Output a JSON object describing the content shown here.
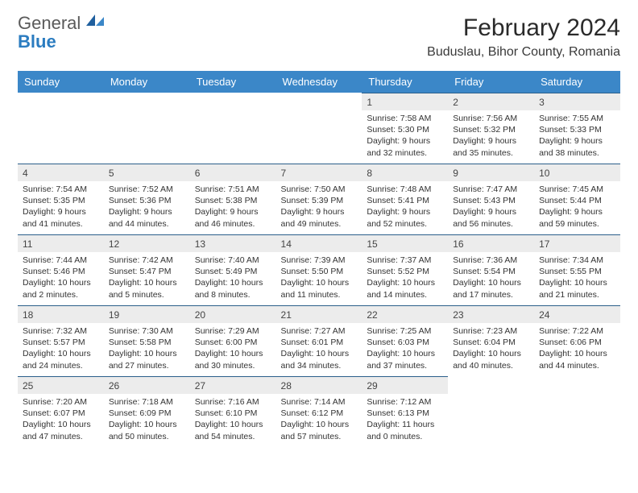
{
  "brand": {
    "name1": "General",
    "name2": "Blue"
  },
  "title": "February 2024",
  "location": "Buduslau, Bihor County, Romania",
  "colors": {
    "header_bg": "#3b87c8",
    "header_fg": "#ffffff",
    "daynum_bg": "#ececec",
    "rule": "#2b5f8a",
    "brand_gray": "#5a5a5a",
    "brand_blue": "#2b7cc0"
  },
  "weekdays": [
    "Sunday",
    "Monday",
    "Tuesday",
    "Wednesday",
    "Thursday",
    "Friday",
    "Saturday"
  ],
  "weeks": [
    [
      null,
      null,
      null,
      null,
      {
        "n": "1",
        "sr": "7:58 AM",
        "ss": "5:30 PM",
        "dl": "9 hours and 32 minutes."
      },
      {
        "n": "2",
        "sr": "7:56 AM",
        "ss": "5:32 PM",
        "dl": "9 hours and 35 minutes."
      },
      {
        "n": "3",
        "sr": "7:55 AM",
        "ss": "5:33 PM",
        "dl": "9 hours and 38 minutes."
      }
    ],
    [
      {
        "n": "4",
        "sr": "7:54 AM",
        "ss": "5:35 PM",
        "dl": "9 hours and 41 minutes."
      },
      {
        "n": "5",
        "sr": "7:52 AM",
        "ss": "5:36 PM",
        "dl": "9 hours and 44 minutes."
      },
      {
        "n": "6",
        "sr": "7:51 AM",
        "ss": "5:38 PM",
        "dl": "9 hours and 46 minutes."
      },
      {
        "n": "7",
        "sr": "7:50 AM",
        "ss": "5:39 PM",
        "dl": "9 hours and 49 minutes."
      },
      {
        "n": "8",
        "sr": "7:48 AM",
        "ss": "5:41 PM",
        "dl": "9 hours and 52 minutes."
      },
      {
        "n": "9",
        "sr": "7:47 AM",
        "ss": "5:43 PM",
        "dl": "9 hours and 56 minutes."
      },
      {
        "n": "10",
        "sr": "7:45 AM",
        "ss": "5:44 PM",
        "dl": "9 hours and 59 minutes."
      }
    ],
    [
      {
        "n": "11",
        "sr": "7:44 AM",
        "ss": "5:46 PM",
        "dl": "10 hours and 2 minutes."
      },
      {
        "n": "12",
        "sr": "7:42 AM",
        "ss": "5:47 PM",
        "dl": "10 hours and 5 minutes."
      },
      {
        "n": "13",
        "sr": "7:40 AM",
        "ss": "5:49 PM",
        "dl": "10 hours and 8 minutes."
      },
      {
        "n": "14",
        "sr": "7:39 AM",
        "ss": "5:50 PM",
        "dl": "10 hours and 11 minutes."
      },
      {
        "n": "15",
        "sr": "7:37 AM",
        "ss": "5:52 PM",
        "dl": "10 hours and 14 minutes."
      },
      {
        "n": "16",
        "sr": "7:36 AM",
        "ss": "5:54 PM",
        "dl": "10 hours and 17 minutes."
      },
      {
        "n": "17",
        "sr": "7:34 AM",
        "ss": "5:55 PM",
        "dl": "10 hours and 21 minutes."
      }
    ],
    [
      {
        "n": "18",
        "sr": "7:32 AM",
        "ss": "5:57 PM",
        "dl": "10 hours and 24 minutes."
      },
      {
        "n": "19",
        "sr": "7:30 AM",
        "ss": "5:58 PM",
        "dl": "10 hours and 27 minutes."
      },
      {
        "n": "20",
        "sr": "7:29 AM",
        "ss": "6:00 PM",
        "dl": "10 hours and 30 minutes."
      },
      {
        "n": "21",
        "sr": "7:27 AM",
        "ss": "6:01 PM",
        "dl": "10 hours and 34 minutes."
      },
      {
        "n": "22",
        "sr": "7:25 AM",
        "ss": "6:03 PM",
        "dl": "10 hours and 37 minutes."
      },
      {
        "n": "23",
        "sr": "7:23 AM",
        "ss": "6:04 PM",
        "dl": "10 hours and 40 minutes."
      },
      {
        "n": "24",
        "sr": "7:22 AM",
        "ss": "6:06 PM",
        "dl": "10 hours and 44 minutes."
      }
    ],
    [
      {
        "n": "25",
        "sr": "7:20 AM",
        "ss": "6:07 PM",
        "dl": "10 hours and 47 minutes."
      },
      {
        "n": "26",
        "sr": "7:18 AM",
        "ss": "6:09 PM",
        "dl": "10 hours and 50 minutes."
      },
      {
        "n": "27",
        "sr": "7:16 AM",
        "ss": "6:10 PM",
        "dl": "10 hours and 54 minutes."
      },
      {
        "n": "28",
        "sr": "7:14 AM",
        "ss": "6:12 PM",
        "dl": "10 hours and 57 minutes."
      },
      {
        "n": "29",
        "sr": "7:12 AM",
        "ss": "6:13 PM",
        "dl": "11 hours and 0 minutes."
      },
      null,
      null
    ]
  ],
  "labels": {
    "sunrise": "Sunrise: ",
    "sunset": "Sunset: ",
    "daylight": "Daylight: "
  }
}
